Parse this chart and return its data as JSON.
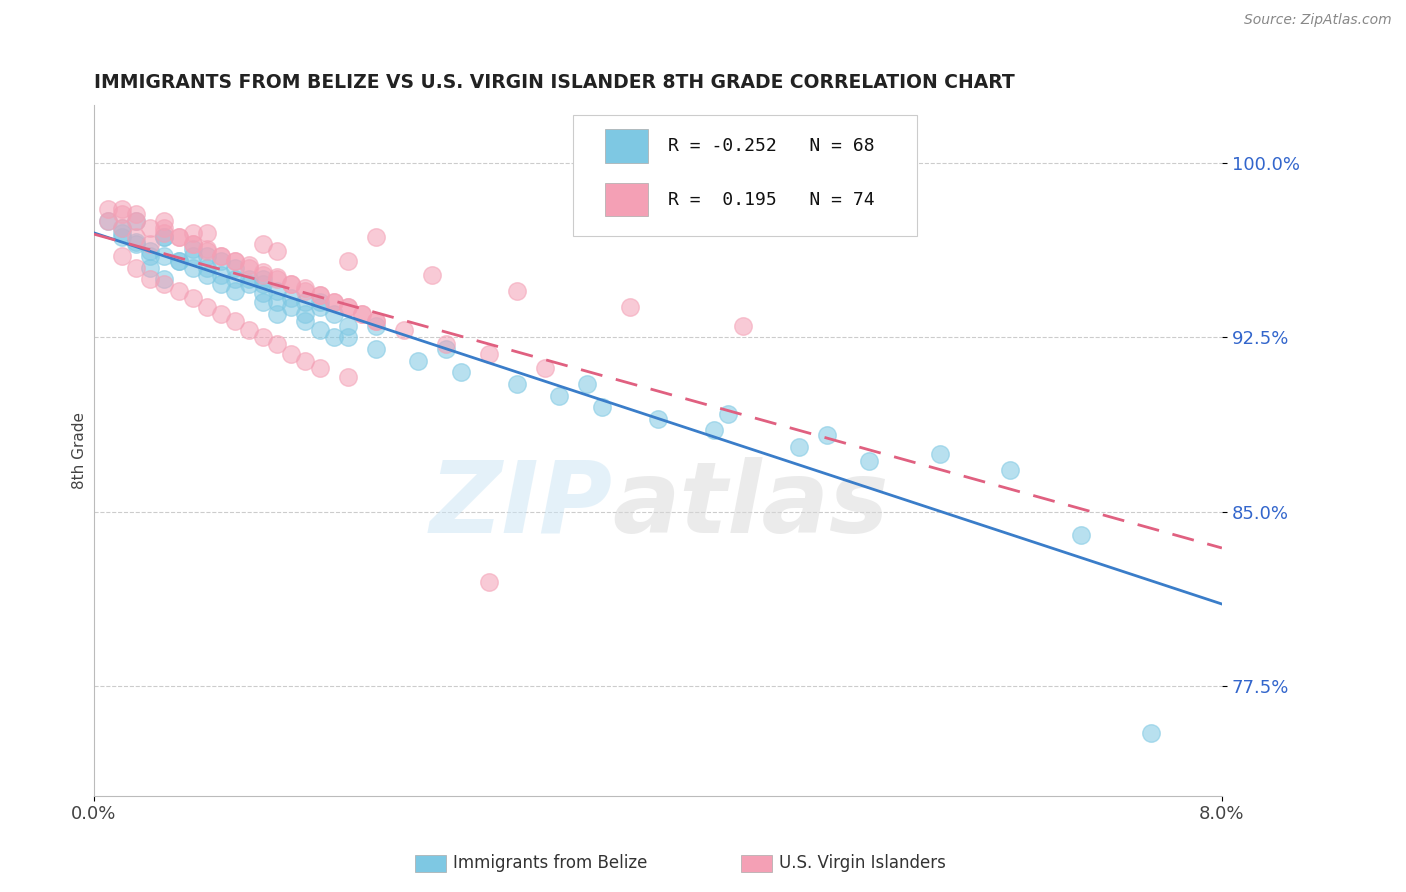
{
  "title": "IMMIGRANTS FROM BELIZE VS U.S. VIRGIN ISLANDER 8TH GRADE CORRELATION CHART",
  "source": "Source: ZipAtlas.com",
  "ylabel": "8th Grade",
  "R_blue": -0.252,
  "N_blue": 68,
  "R_pink": 0.195,
  "N_pink": 74,
  "blue_color": "#7EC8E3",
  "pink_color": "#F4A0B5",
  "blue_line_color": "#3A7DC9",
  "pink_line_color": "#E06080",
  "xlim": [
    0.0,
    0.08
  ],
  "ylim": [
    0.728,
    1.025
  ],
  "ytick_positions": [
    0.775,
    0.85,
    0.925,
    1.0
  ],
  "ytick_labels": [
    "77.5%",
    "85.0%",
    "92.5%",
    "100.0%"
  ],
  "legend_blue_label": "Immigrants from Belize",
  "legend_pink_label": "U.S. Virgin Islanders",
  "blue_x": [
    0.002,
    0.003,
    0.004,
    0.004,
    0.005,
    0.005,
    0.006,
    0.007,
    0.007,
    0.008,
    0.009,
    0.009,
    0.01,
    0.01,
    0.011,
    0.012,
    0.012,
    0.013,
    0.013,
    0.014,
    0.015,
    0.015,
    0.016,
    0.016,
    0.017,
    0.017,
    0.018,
    0.001,
    0.002,
    0.002,
    0.003,
    0.004,
    0.005,
    0.006,
    0.007,
    0.008,
    0.009,
    0.01,
    0.011,
    0.012,
    0.013,
    0.014,
    0.015,
    0.018,
    0.02,
    0.023,
    0.026,
    0.03,
    0.033,
    0.036,
    0.04,
    0.044,
    0.05,
    0.055,
    0.003,
    0.005,
    0.008,
    0.012,
    0.016,
    0.02,
    0.025,
    0.035,
    0.045,
    0.052,
    0.06,
    0.065,
    0.07,
    0.075
  ],
  "blue_y": [
    0.97,
    0.965,
    0.96,
    0.955,
    0.968,
    0.95,
    0.958,
    0.955,
    0.963,
    0.952,
    0.958,
    0.948,
    0.955,
    0.945,
    0.95,
    0.948,
    0.94,
    0.945,
    0.935,
    0.942,
    0.94,
    0.932,
    0.938,
    0.928,
    0.935,
    0.925,
    0.93,
    0.975,
    0.972,
    0.968,
    0.966,
    0.962,
    0.96,
    0.958,
    0.96,
    0.955,
    0.952,
    0.95,
    0.948,
    0.944,
    0.94,
    0.938,
    0.935,
    0.925,
    0.92,
    0.915,
    0.91,
    0.905,
    0.9,
    0.895,
    0.89,
    0.885,
    0.878,
    0.872,
    0.975,
    0.968,
    0.96,
    0.95,
    0.94,
    0.93,
    0.92,
    0.905,
    0.892,
    0.883,
    0.875,
    0.868,
    0.84,
    0.755
  ],
  "pink_x": [
    0.001,
    0.002,
    0.002,
    0.003,
    0.003,
    0.004,
    0.004,
    0.005,
    0.005,
    0.006,
    0.006,
    0.007,
    0.007,
    0.008,
    0.008,
    0.009,
    0.009,
    0.01,
    0.01,
    0.011,
    0.011,
    0.012,
    0.012,
    0.013,
    0.013,
    0.014,
    0.014,
    0.015,
    0.015,
    0.016,
    0.016,
    0.017,
    0.018,
    0.018,
    0.019,
    0.02,
    0.001,
    0.002,
    0.003,
    0.004,
    0.005,
    0.006,
    0.007,
    0.008,
    0.009,
    0.01,
    0.011,
    0.012,
    0.013,
    0.014,
    0.015,
    0.016,
    0.017,
    0.018,
    0.019,
    0.02,
    0.022,
    0.025,
    0.028,
    0.032,
    0.002,
    0.005,
    0.008,
    0.012,
    0.018,
    0.024,
    0.03,
    0.038,
    0.046,
    0.003,
    0.007,
    0.013,
    0.02,
    0.028
  ],
  "pink_y": [
    0.975,
    0.972,
    0.96,
    0.968,
    0.955,
    0.965,
    0.95,
    0.972,
    0.948,
    0.968,
    0.945,
    0.965,
    0.942,
    0.962,
    0.938,
    0.96,
    0.935,
    0.958,
    0.932,
    0.955,
    0.928,
    0.952,
    0.925,
    0.95,
    0.922,
    0.948,
    0.918,
    0.945,
    0.915,
    0.943,
    0.912,
    0.94,
    0.938,
    0.908,
    0.935,
    0.932,
    0.98,
    0.978,
    0.975,
    0.972,
    0.97,
    0.968,
    0.965,
    0.963,
    0.96,
    0.958,
    0.956,
    0.953,
    0.951,
    0.948,
    0.946,
    0.943,
    0.94,
    0.938,
    0.935,
    0.932,
    0.928,
    0.922,
    0.918,
    0.912,
    0.98,
    0.975,
    0.97,
    0.965,
    0.958,
    0.952,
    0.945,
    0.938,
    0.93,
    0.978,
    0.97,
    0.962,
    0.968,
    0.82
  ]
}
